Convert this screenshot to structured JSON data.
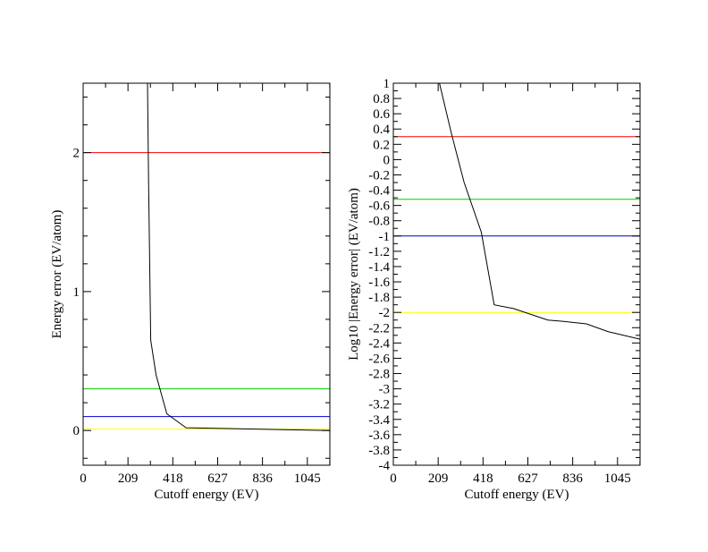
{
  "chart_data": [
    {
      "type": "line",
      "xlabel": "Cutoff energy (EV)",
      "ylabel": "Energy error (EV/atom)",
      "xlim": [
        0,
        1150
      ],
      "ylim": [
        -0.25,
        2.5
      ],
      "x_ticks": [
        0,
        209,
        418,
        627,
        836,
        1045
      ],
      "y_ticks": [
        0,
        1,
        2
      ],
      "grid": false,
      "series": [
        {
          "color": "#000000",
          "points": [
            [
              300,
              2.5
            ],
            [
              305,
              1.8
            ],
            [
              315,
              0.65
            ],
            [
              340,
              0.4
            ],
            [
              390,
              0.12
            ],
            [
              480,
              0.02
            ],
            [
              1150,
              0.0
            ]
          ]
        }
      ],
      "reference_lines": [
        {
          "y": 2.0,
          "color": "#ff0000"
        },
        {
          "y": 0.3,
          "color": "#00cc00"
        },
        {
          "y": 0.1,
          "color": "#0000cc"
        },
        {
          "y": 0.01,
          "color": "#ffff00"
        }
      ]
    },
    {
      "type": "line",
      "xlabel": "Cutoff energy (EV)",
      "ylabel": "Log10 |Energy error| (EV/atom)",
      "xlim": [
        0,
        1150
      ],
      "ylim": [
        -4,
        1
      ],
      "x_ticks": [
        0,
        209,
        418,
        627,
        836,
        1045
      ],
      "y_ticks": [
        1,
        0.8,
        0.6,
        0.4,
        0.2,
        0,
        -0.2,
        -0.4,
        -0.6,
        -0.8,
        -1,
        -1.2,
        -1.4,
        -1.6,
        -1.8,
        -2,
        -2.2,
        -2.4,
        -2.6,
        -2.8,
        -3,
        -3.2,
        -3.4,
        -3.6,
        -3.8,
        -4
      ],
      "grid": false,
      "series": [
        {
          "color": "#000000",
          "points": [
            [
              215,
              1.0
            ],
            [
              270,
              0.35
            ],
            [
              330,
              -0.3
            ],
            [
              410,
              -0.95
            ],
            [
              470,
              -1.9
            ],
            [
              560,
              -1.95
            ],
            [
              720,
              -2.1
            ],
            [
              800,
              -2.12
            ],
            [
              900,
              -2.15
            ],
            [
              1000,
              -2.25
            ],
            [
              1150,
              -2.35
            ]
          ]
        }
      ],
      "reference_lines": [
        {
          "y": 0.3,
          "color": "#ff0000"
        },
        {
          "y": -0.52,
          "color": "#00cc00"
        },
        {
          "y": -1.0,
          "color": "#0000cc"
        },
        {
          "y": -2.0,
          "color": "#ffff00"
        }
      ]
    }
  ]
}
